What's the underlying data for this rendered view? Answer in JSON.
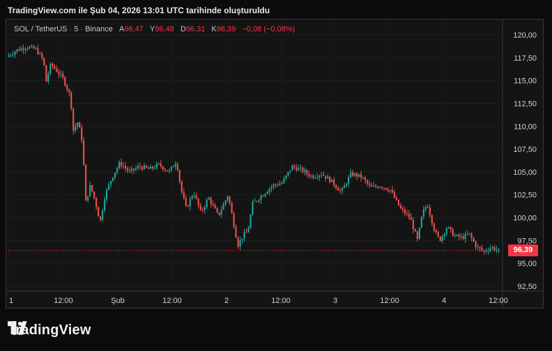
{
  "caption": "TradingView.com ile Şub 04, 2026 13:01 UTC tarihinde oluşturuldu",
  "legend": {
    "symbol": "SOL / TetherUS",
    "sep1": "·",
    "interval": "5",
    "sep2": "·",
    "exchange": "Binance",
    "open_label": "A",
    "open": "96,47",
    "high_label": "Y",
    "high": "96,48",
    "low_label": "D",
    "low": "96,31",
    "close_label": "K",
    "close": "96,39",
    "change": "−0,08 (−0,08%)"
  },
  "last_price_badge": "96,39",
  "brand": "TradingView",
  "colors": {
    "up": "#26a69a",
    "down": "#ef5350",
    "badge": "#f23645",
    "background": "#141414"
  },
  "chart_data": {
    "type": "candlestick",
    "y_ticks": [
      "120,00",
      "117,50",
      "115,00",
      "112,50",
      "110,00",
      "107,50",
      "105,00",
      "102,50",
      "100,00",
      "97,50",
      "95,00",
      "92,50"
    ],
    "x_ticks": [
      "1",
      "12:00",
      "Şub",
      "12:00",
      "2",
      "12:00",
      "3",
      "12:00",
      "4",
      "12:00"
    ],
    "ylim": [
      92.5,
      120.0
    ],
    "last_price": 96.39,
    "price_path": [
      [
        0,
        117.6
      ],
      [
        0.02,
        118.3
      ],
      [
        0.04,
        118.7
      ],
      [
        0.06,
        118.4
      ],
      [
        0.075,
        117.2
      ],
      [
        0.08,
        114.8
      ],
      [
        0.09,
        116.8
      ],
      [
        0.1,
        116.2
      ],
      [
        0.115,
        115.2
      ],
      [
        0.13,
        113.2
      ],
      [
        0.135,
        109.5
      ],
      [
        0.145,
        110.5
      ],
      [
        0.155,
        108.0
      ],
      [
        0.16,
        101.5
      ],
      [
        0.17,
        103.5
      ],
      [
        0.18,
        101.8
      ],
      [
        0.19,
        99.5
      ],
      [
        0.2,
        102.5
      ],
      [
        0.215,
        104.5
      ],
      [
        0.23,
        106.0
      ],
      [
        0.25,
        105.0
      ],
      [
        0.27,
        105.6
      ],
      [
        0.29,
        105.3
      ],
      [
        0.31,
        105.8
      ],
      [
        0.33,
        105.0
      ],
      [
        0.345,
        106.2
      ],
      [
        0.355,
        103.0
      ],
      [
        0.365,
        101.0
      ],
      [
        0.38,
        102.8
      ],
      [
        0.395,
        100.5
      ],
      [
        0.41,
        102.2
      ],
      [
        0.43,
        100.2
      ],
      [
        0.45,
        102.5
      ],
      [
        0.47,
        97.0
      ],
      [
        0.48,
        98.0
      ],
      [
        0.49,
        98.5
      ],
      [
        0.5,
        101.5
      ],
      [
        0.52,
        102.5
      ],
      [
        0.54,
        103.5
      ],
      [
        0.56,
        103.8
      ],
      [
        0.58,
        105.6
      ],
      [
        0.6,
        105.2
      ],
      [
        0.62,
        104.5
      ],
      [
        0.64,
        104.8
      ],
      [
        0.66,
        104.0
      ],
      [
        0.68,
        102.8
      ],
      [
        0.7,
        104.8
      ],
      [
        0.72,
        104.5
      ],
      [
        0.74,
        103.3
      ],
      [
        0.76,
        103.5
      ],
      [
        0.78,
        103.0
      ],
      [
        0.8,
        101.0
      ],
      [
        0.82,
        100.0
      ],
      [
        0.835,
        97.5
      ],
      [
        0.845,
        100.5
      ],
      [
        0.855,
        101.5
      ],
      [
        0.87,
        98.5
      ],
      [
        0.88,
        97.5
      ],
      [
        0.895,
        99.0
      ],
      [
        0.91,
        98.0
      ],
      [
        0.925,
        97.8
      ],
      [
        0.94,
        98.2
      ],
      [
        0.955,
        96.8
      ],
      [
        0.97,
        96.3
      ],
      [
        0.985,
        96.8
      ],
      [
        1.0,
        96.4
      ]
    ]
  }
}
